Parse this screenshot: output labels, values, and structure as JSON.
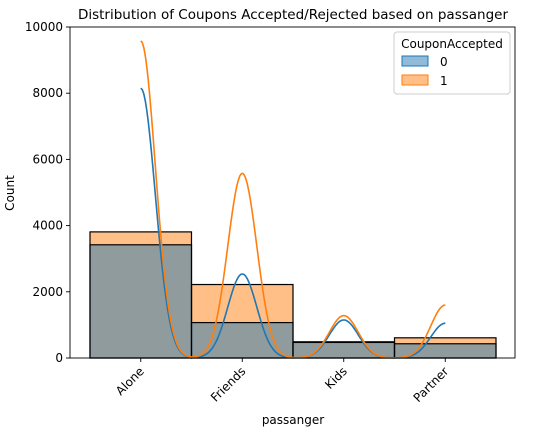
{
  "chart_data": {
    "type": "bar",
    "title": "Distribution of Coupons Accepted/Rejected based on passanger",
    "xlabel": "passanger",
    "ylabel": "Count",
    "categories": [
      "Alone",
      "Friends",
      "Kids",
      "Partner"
    ],
    "ylim": [
      0,
      10000
    ],
    "yticks": [
      0,
      2000,
      4000,
      6000,
      8000,
      10000
    ],
    "grid": false,
    "legend": {
      "title": "CouponAccepted",
      "placement": "top-right"
    },
    "series": [
      {
        "name": "0",
        "values": [
          3420,
          1070,
          470,
          430
        ],
        "color": "#1f77b4",
        "kde_peaks": [
          8150,
          2540,
          1150,
          1050
        ]
      },
      {
        "name": "1",
        "values": [
          3810,
          2220,
          490,
          610
        ],
        "color": "#ff7f0e",
        "kde_peaks": [
          9580,
          5580,
          1280,
          1600
        ]
      }
    ]
  }
}
